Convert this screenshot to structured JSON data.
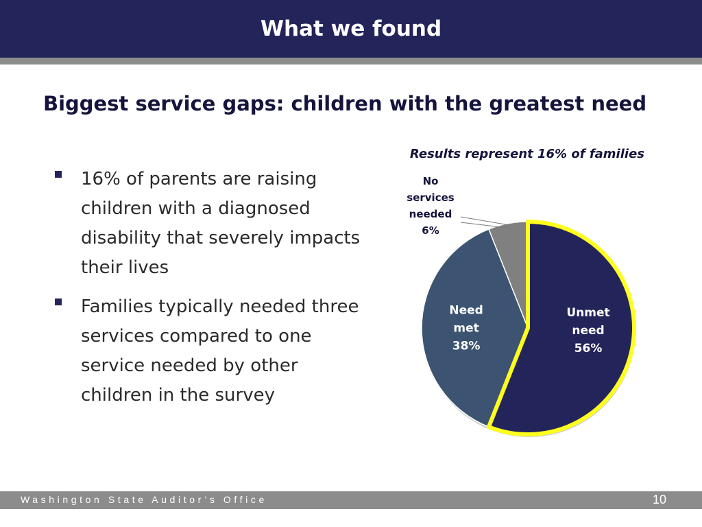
{
  "header": {
    "title": "What we found"
  },
  "slide": {
    "subtitle": "Biggest service gaps: children with the greatest need",
    "bullets": [
      "16% of parents are raising children with a diagnosed disability that severely impacts their lives",
      "Families typically needed three services compared to one service needed by other children in the survey"
    ]
  },
  "chart_data": {
    "type": "pie",
    "title": "Results represent 16% of families",
    "slices": [
      {
        "label_lines": [
          "Unmet",
          "need",
          "56%"
        ],
        "value": 56,
        "color": "#23245a",
        "outline": "#ffff1e",
        "text_color": "#ffffff"
      },
      {
        "label_lines": [
          "Need",
          "met",
          "38%"
        ],
        "value": 38,
        "color": "#3c5371",
        "text_color": "#ffffff"
      },
      {
        "label_lines": [
          "No",
          "services",
          "needed",
          "6%"
        ],
        "value": 6,
        "color": "#808080",
        "text_color": "#14143c"
      }
    ],
    "start_angle_deg": 0,
    "direction": "clockwise"
  },
  "footer": {
    "org": "Washington State Auditor’s Office",
    "page": "10"
  }
}
